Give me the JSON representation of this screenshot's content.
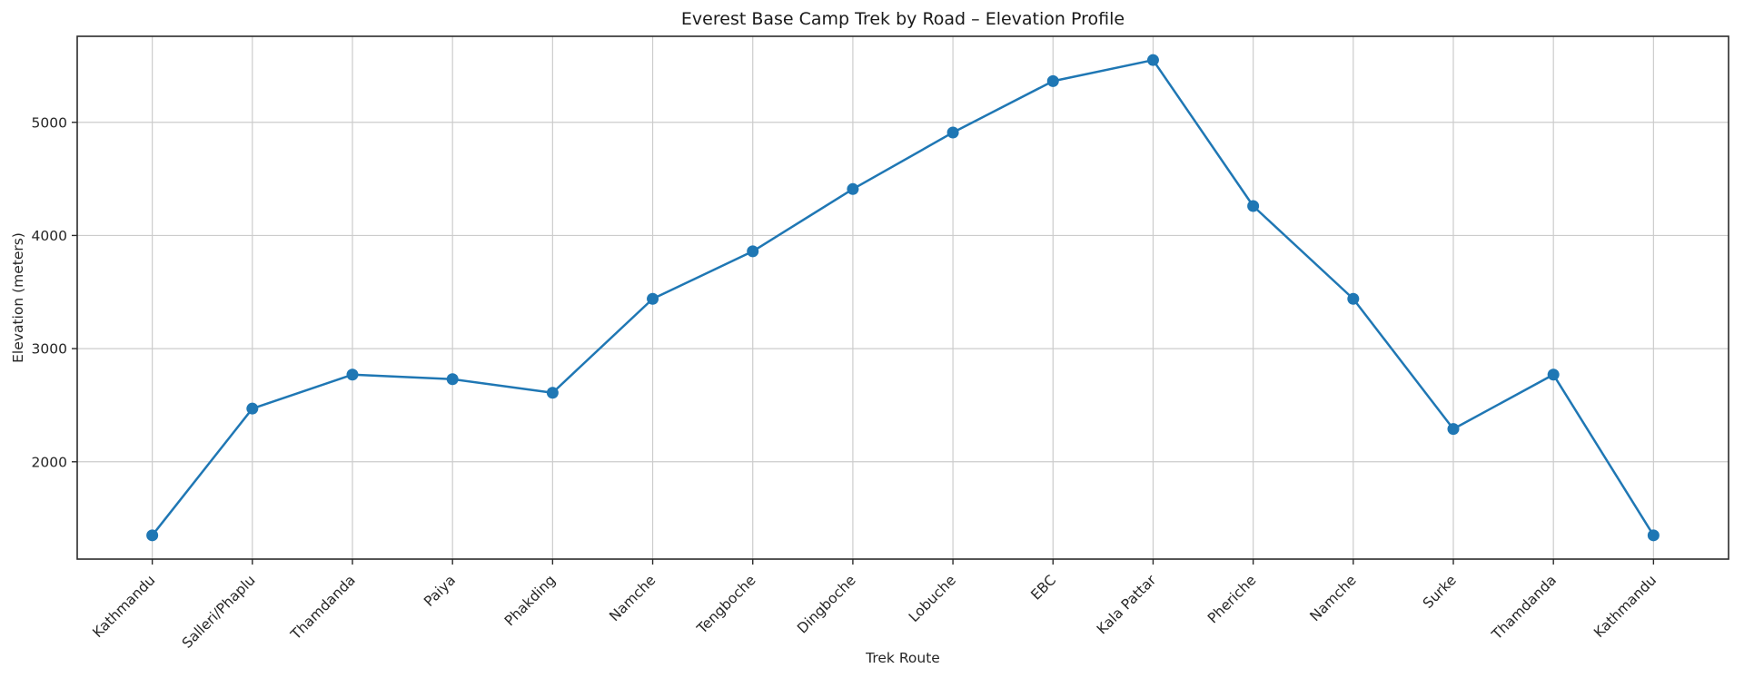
{
  "chart_data": {
    "type": "line",
    "title": "Everest Base Camp Trek by Road – Elevation Profile",
    "xlabel": "Trek Route",
    "ylabel": "Elevation (meters)",
    "categories": [
      "Kathmandu",
      "Salleri/Phaplu",
      "Thamdanda",
      "Paiya",
      "Phakding",
      "Namche",
      "Tengboche",
      "Dingboche",
      "Lobuche",
      "EBC",
      "Kala Pattar",
      "Pheriche",
      "Namche",
      "Surke",
      "Thamdanda",
      "Kathmandu"
    ],
    "series": [
      {
        "name": "Elevation",
        "values": [
          1350,
          2470,
          2770,
          2730,
          2610,
          3440,
          3860,
          4410,
          4910,
          5364,
          5550,
          4260,
          3440,
          2290,
          2770,
          1350
        ]
      }
    ],
    "yticks": [
      2000,
      3000,
      4000,
      5000
    ],
    "ylim": [
      1140,
      5760
    ],
    "grid": true,
    "legend_position": "none",
    "x_tick_rotation": 45,
    "marker": "o",
    "colors": {
      "line": "#1f77b4",
      "marker": "#1f77b4",
      "grid": "#cccccc",
      "spine": "#2b2b2b",
      "tick": "#2b2b2b",
      "text": "#262626",
      "background": "#ffffff"
    }
  }
}
